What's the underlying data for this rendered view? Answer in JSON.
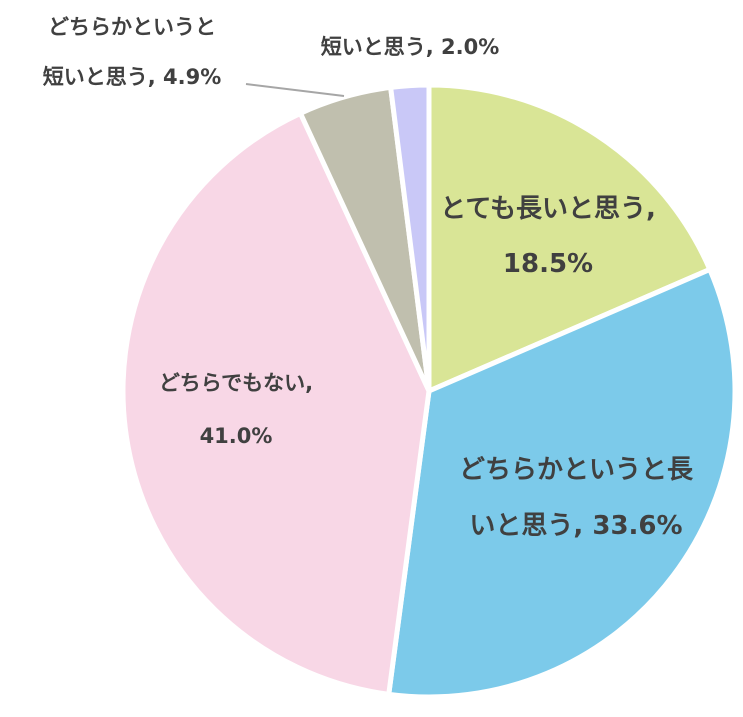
{
  "chart_data": {
    "type": "pie",
    "start_angle_deg": 0,
    "direction": "clockwise",
    "slices": [
      {
        "name": "とても長いと思う",
        "value": 18.5,
        "value_label": "18.5%",
        "color": "#d9e596"
      },
      {
        "name": "どちらかというと長いと思う",
        "value": 33.6,
        "value_label": "33.6%",
        "color": "#7ccaea"
      },
      {
        "name": "どちらでもない",
        "value": 41.0,
        "value_label": "41.0%",
        "color": "#f8d7e6"
      },
      {
        "name": "どちらかというと短いと思う",
        "value": 4.9,
        "value_label": "4.9%",
        "color": "#c0bfae"
      },
      {
        "name": "短いと思う",
        "value": 2.0,
        "value_label": "2.0%",
        "color": "#c9c8f7"
      }
    ]
  },
  "labels": {
    "s0_line1": "とても長いと思う,",
    "s0_line2": "18.5%",
    "s1_line1": "どちらかというと長",
    "s1_line2": "いと思う, 33.6%",
    "s2_line1": "どちらでもない,",
    "s2_line2": "41.0%",
    "s3_line1": "どちらかというと",
    "s3_line2": "短いと思う, 4.9%",
    "s4_line1": "短いと思う, 2.0%"
  }
}
